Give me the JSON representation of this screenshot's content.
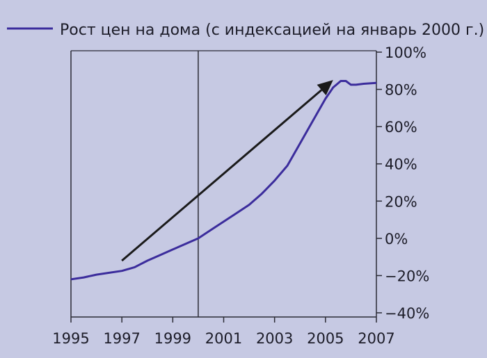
{
  "chart_data": {
    "type": "line",
    "title": "",
    "legend": [
      {
        "label": "Рост цен на дома (с индексацией на январь 2000 г.)",
        "color": "#3b2c9c"
      }
    ],
    "legend_placement": "top-left",
    "xlabel": "",
    "ylabel": "",
    "xlim": [
      1995,
      2007
    ],
    "ylim": [
      -40,
      100
    ],
    "x_ticks": [
      "1995",
      "1997",
      "1999",
      "2001",
      "2003",
      "2005",
      "2007"
    ],
    "x_tick_values": [
      1995,
      1997,
      1999,
      2001,
      2003,
      2005,
      2007
    ],
    "y_ticks": [
      "100%",
      "80%",
      "60%",
      "40%",
      "20%",
      "0%",
      "-20%",
      "-40%"
    ],
    "y_tick_values": [
      100,
      80,
      60,
      40,
      20,
      0,
      -20,
      -40
    ],
    "y_axis_side": "right",
    "grid": false,
    "reference_line_x": 2000,
    "series": [
      {
        "name": "Рост цен на дома (с индексацией на январь 2000 г.)",
        "color": "#3b2c9c",
        "x": [
          1995,
          1995.5,
          1996,
          1996.5,
          1997,
          1997.5,
          1998,
          1998.5,
          1999,
          1999.5,
          2000,
          2000.5,
          2001,
          2001.5,
          2002,
          2002.5,
          2003,
          2003.5,
          2004,
          2004.5,
          2005,
          2005.3,
          2005.6,
          2005.8,
          2006,
          2006.2,
          2006.5,
          2007
        ],
        "y": [
          -22,
          -21,
          -19.5,
          -18.5,
          -17.5,
          -15.5,
          -12,
          -9,
          -6,
          -3,
          0,
          4.5,
          9,
          13.5,
          18,
          24,
          31,
          39,
          51,
          63,
          75,
          81,
          84.5,
          84.5,
          82.5,
          82.5,
          83,
          83.5
        ]
      }
    ],
    "annotations": [
      {
        "type": "arrow",
        "from": [
          1997,
          -12
        ],
        "to": [
          2005.3,
          85
        ],
        "color": "#1a1a1a"
      }
    ]
  }
}
